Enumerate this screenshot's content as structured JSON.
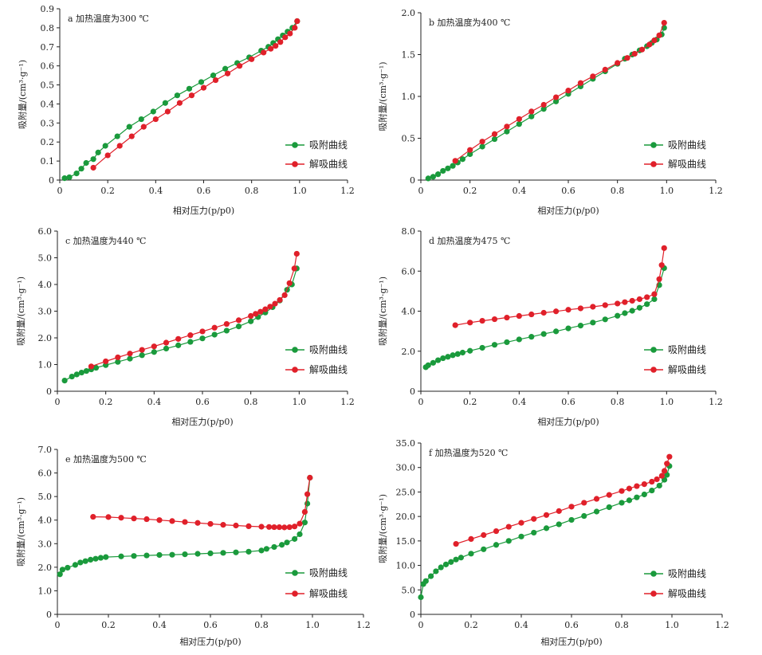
{
  "chart_data": [
    {
      "type": "line",
      "title": "a 加热温度为300 ℃",
      "xlabel": "相对压力(p/p0)",
      "ylabel": "吸附量/(cm³·g⁻¹)",
      "xlim": [
        0,
        1.2
      ],
      "ylim": [
        0,
        0.9
      ],
      "x_ticks": [
        "0",
        "0.2",
        "0.4",
        "0.6",
        "0.8",
        "1.0",
        "1.2"
      ],
      "y_ticks": [
        "0",
        "0.1",
        "0.2",
        "0.3",
        "0.4",
        "0.5",
        "0.6",
        "0.7",
        "0.8",
        "0.9"
      ],
      "legend_position": "right",
      "series": [
        {
          "name": "吸附曲线",
          "color": "#1a9a3c",
          "x": [
            0.02,
            0.04,
            0.07,
            0.09,
            0.11,
            0.14,
            0.16,
            0.19,
            0.24,
            0.29,
            0.34,
            0.39,
            0.44,
            0.49,
            0.54,
            0.59,
            0.64,
            0.69,
            0.74,
            0.79,
            0.84,
            0.87,
            0.89,
            0.91,
            0.93,
            0.95,
            0.97,
            0.99
          ],
          "y": [
            0.01,
            0.015,
            0.035,
            0.06,
            0.09,
            0.11,
            0.145,
            0.18,
            0.23,
            0.28,
            0.32,
            0.36,
            0.405,
            0.445,
            0.48,
            0.515,
            0.55,
            0.585,
            0.615,
            0.645,
            0.68,
            0.7,
            0.72,
            0.74,
            0.76,
            0.78,
            0.8,
            0.835
          ]
        },
        {
          "name": "解吸曲线",
          "color": "#e0202a",
          "x": [
            0.14,
            0.2,
            0.25,
            0.3,
            0.35,
            0.4,
            0.45,
            0.5,
            0.55,
            0.6,
            0.65,
            0.7,
            0.75,
            0.8,
            0.85,
            0.88,
            0.9,
            0.92,
            0.94,
            0.96,
            0.98,
            0.99
          ],
          "y": [
            0.065,
            0.13,
            0.18,
            0.23,
            0.28,
            0.32,
            0.36,
            0.405,
            0.445,
            0.485,
            0.525,
            0.56,
            0.6,
            0.635,
            0.67,
            0.69,
            0.705,
            0.725,
            0.75,
            0.77,
            0.8,
            0.835
          ]
        }
      ]
    },
    {
      "type": "line",
      "title": "b 加热温度为400 ℃",
      "xlabel": "相对压力(p/p0)",
      "ylabel": "吸附量/(cm³·g⁻¹)",
      "xlim": [
        0,
        1.2
      ],
      "ylim": [
        0,
        2.0
      ],
      "x_ticks": [
        "0",
        "0.2",
        "0.4",
        "0.6",
        "0.8",
        "1.0",
        "1.2"
      ],
      "y_ticks": [
        "0",
        "0.5",
        "1.0",
        "1.5",
        "2.0"
      ],
      "legend_position": "right",
      "series": [
        {
          "name": "吸附曲线",
          "color": "#1a9a3c",
          "x": [
            0.03,
            0.05,
            0.07,
            0.09,
            0.11,
            0.13,
            0.15,
            0.17,
            0.2,
            0.25,
            0.3,
            0.35,
            0.4,
            0.45,
            0.5,
            0.55,
            0.6,
            0.65,
            0.7,
            0.75,
            0.8,
            0.83,
            0.86,
            0.89,
            0.92,
            0.94,
            0.96,
            0.98,
            0.99
          ],
          "y": [
            0.02,
            0.04,
            0.07,
            0.11,
            0.14,
            0.17,
            0.21,
            0.25,
            0.31,
            0.4,
            0.49,
            0.58,
            0.67,
            0.76,
            0.85,
            0.94,
            1.03,
            1.12,
            1.21,
            1.3,
            1.39,
            1.45,
            1.5,
            1.55,
            1.6,
            1.64,
            1.68,
            1.74,
            1.82
          ]
        },
        {
          "name": "解吸曲线",
          "color": "#e0202a",
          "x": [
            0.14,
            0.2,
            0.25,
            0.3,
            0.35,
            0.4,
            0.45,
            0.5,
            0.55,
            0.6,
            0.65,
            0.7,
            0.75,
            0.8,
            0.84,
            0.87,
            0.9,
            0.93,
            0.95,
            0.97,
            0.99
          ],
          "y": [
            0.23,
            0.36,
            0.46,
            0.55,
            0.64,
            0.73,
            0.82,
            0.9,
            0.99,
            1.07,
            1.16,
            1.24,
            1.32,
            1.4,
            1.46,
            1.51,
            1.56,
            1.62,
            1.67,
            1.73,
            1.88
          ]
        }
      ]
    },
    {
      "type": "line",
      "title": "c 加热温度为440 ℃",
      "xlabel": "相对压力(p/p0)",
      "ylabel": "吸附量/(cm³·g⁻¹)",
      "xlim": [
        0,
        1.2
      ],
      "ylim": [
        0,
        6.0
      ],
      "x_ticks": [
        "0",
        "0.2",
        "0.4",
        "0.6",
        "0.8",
        "1.0",
        "1.2"
      ],
      "y_ticks": [
        "0",
        "1.0",
        "2.0",
        "3.0",
        "4.0",
        "5.0",
        "6.0"
      ],
      "legend_position": "right",
      "series": [
        {
          "name": "吸附曲线",
          "color": "#1a9a3c",
          "x": [
            0.03,
            0.06,
            0.08,
            0.1,
            0.12,
            0.14,
            0.16,
            0.2,
            0.25,
            0.3,
            0.35,
            0.4,
            0.45,
            0.5,
            0.55,
            0.6,
            0.65,
            0.7,
            0.75,
            0.8,
            0.83,
            0.86,
            0.89,
            0.92,
            0.95,
            0.97,
            0.99
          ],
          "y": [
            0.4,
            0.55,
            0.63,
            0.7,
            0.76,
            0.82,
            0.88,
            0.98,
            1.1,
            1.22,
            1.35,
            1.47,
            1.6,
            1.72,
            1.85,
            1.98,
            2.12,
            2.27,
            2.43,
            2.62,
            2.78,
            2.95,
            3.15,
            3.4,
            3.8,
            4.0,
            4.6
          ]
        },
        {
          "name": "解吸曲线",
          "color": "#e0202a",
          "x": [
            0.14,
            0.2,
            0.25,
            0.3,
            0.35,
            0.4,
            0.45,
            0.5,
            0.55,
            0.6,
            0.65,
            0.7,
            0.75,
            0.8,
            0.82,
            0.84,
            0.86,
            0.88,
            0.9,
            0.92,
            0.94,
            0.96,
            0.98,
            0.99
          ],
          "y": [
            0.93,
            1.12,
            1.27,
            1.41,
            1.55,
            1.68,
            1.82,
            1.96,
            2.1,
            2.24,
            2.38,
            2.52,
            2.66,
            2.82,
            2.9,
            2.98,
            3.07,
            3.17,
            3.28,
            3.42,
            3.6,
            4.05,
            4.6,
            5.15
          ]
        }
      ]
    },
    {
      "type": "line",
      "title": "d 加热温度为475 ℃",
      "xlabel": "相对压力(p/p0)",
      "ylabel": "吸附量/(cm³·g⁻¹)",
      "xlim": [
        0,
        1.2
      ],
      "ylim": [
        0,
        8.0
      ],
      "x_ticks": [
        "0",
        "0.2",
        "0.4",
        "0.6",
        "0.8",
        "1.0",
        "1.2"
      ],
      "y_ticks": [
        "0",
        "2.0",
        "4.0",
        "6.0",
        "8.0"
      ],
      "legend_position": "right",
      "series": [
        {
          "name": "吸附曲线",
          "color": "#1a9a3c",
          "x": [
            0.02,
            0.03,
            0.05,
            0.07,
            0.09,
            0.11,
            0.13,
            0.15,
            0.17,
            0.2,
            0.25,
            0.3,
            0.35,
            0.4,
            0.45,
            0.5,
            0.55,
            0.6,
            0.65,
            0.7,
            0.75,
            0.8,
            0.83,
            0.86,
            0.89,
            0.92,
            0.95,
            0.97,
            0.99
          ],
          "y": [
            1.2,
            1.3,
            1.42,
            1.55,
            1.65,
            1.72,
            1.8,
            1.86,
            1.93,
            2.02,
            2.17,
            2.32,
            2.45,
            2.59,
            2.72,
            2.86,
            2.99,
            3.14,
            3.28,
            3.43,
            3.59,
            3.77,
            3.9,
            4.02,
            4.17,
            4.35,
            4.6,
            5.3,
            6.15
          ]
        },
        {
          "name": "解吸曲线",
          "color": "#e0202a",
          "x": [
            0.14,
            0.2,
            0.25,
            0.3,
            0.35,
            0.4,
            0.45,
            0.5,
            0.55,
            0.6,
            0.65,
            0.7,
            0.75,
            0.8,
            0.83,
            0.86,
            0.89,
            0.92,
            0.95,
            0.97,
            0.98,
            0.99
          ],
          "y": [
            3.3,
            3.43,
            3.52,
            3.6,
            3.68,
            3.76,
            3.84,
            3.92,
            3.99,
            4.07,
            4.14,
            4.22,
            4.3,
            4.38,
            4.45,
            4.52,
            4.6,
            4.7,
            4.85,
            5.6,
            6.3,
            7.15
          ]
        }
      ]
    },
    {
      "type": "line",
      "title": "e 加热温度为500 ℃",
      "xlabel": "相对压力(p/p0)",
      "ylabel": "吸附量/(cm³·g⁻¹)",
      "xlim": [
        0,
        1.2
      ],
      "ylim": [
        0,
        7.0
      ],
      "x_ticks": [
        "0",
        "0.2",
        "0.4",
        "0.6",
        "0.8",
        "1.0",
        "1.2"
      ],
      "y_ticks": [
        "0",
        "1.0",
        "2.0",
        "3.0",
        "4.0",
        "5.0",
        "6.0",
        "7.0"
      ],
      "legend_position": "right",
      "series": [
        {
          "name": "吸附曲线",
          "color": "#1a9a3c",
          "x": [
            0.01,
            0.02,
            0.04,
            0.07,
            0.09,
            0.11,
            0.13,
            0.15,
            0.17,
            0.19,
            0.25,
            0.3,
            0.35,
            0.4,
            0.45,
            0.5,
            0.55,
            0.6,
            0.65,
            0.7,
            0.75,
            0.8,
            0.82,
            0.85,
            0.88,
            0.9,
            0.93,
            0.95,
            0.97,
            0.98,
            0.99
          ],
          "y": [
            1.7,
            1.9,
            1.98,
            2.1,
            2.2,
            2.26,
            2.32,
            2.36,
            2.4,
            2.43,
            2.46,
            2.48,
            2.5,
            2.52,
            2.53,
            2.55,
            2.57,
            2.59,
            2.61,
            2.63,
            2.66,
            2.71,
            2.78,
            2.86,
            2.95,
            3.05,
            3.2,
            3.4,
            3.9,
            4.7,
            5.8
          ]
        },
        {
          "name": "解吸曲线",
          "color": "#e0202a",
          "x": [
            0.14,
            0.2,
            0.25,
            0.3,
            0.35,
            0.4,
            0.45,
            0.5,
            0.55,
            0.6,
            0.65,
            0.7,
            0.75,
            0.8,
            0.83,
            0.85,
            0.87,
            0.89,
            0.91,
            0.93,
            0.95,
            0.97,
            0.98,
            0.99
          ],
          "y": [
            4.14,
            4.13,
            4.1,
            4.07,
            4.04,
            4.0,
            3.96,
            3.92,
            3.88,
            3.84,
            3.8,
            3.77,
            3.74,
            3.72,
            3.71,
            3.7,
            3.7,
            3.69,
            3.7,
            3.73,
            3.85,
            4.35,
            5.1,
            5.8
          ]
        }
      ]
    },
    {
      "type": "line",
      "title": "f 加热温度为520 ℃",
      "xlabel": "相对压力(p/p0)",
      "ylabel": "吸附量/(cm³·g⁻¹)",
      "xlim": [
        0,
        1.2
      ],
      "ylim": [
        0,
        35.0
      ],
      "x_ticks": [
        "0",
        "0.2",
        "0.4",
        "0.6",
        "0.8",
        "1.0",
        "1.2"
      ],
      "y_ticks": [
        "0",
        "5.0",
        "10.0",
        "15.0",
        "20.0",
        "25.0",
        "30.0",
        "35.0"
      ],
      "legend_position": "right",
      "series": [
        {
          "name": "吸附曲线",
          "color": "#1a9a3c",
          "x": [
            0.0,
            0.01,
            0.02,
            0.04,
            0.06,
            0.08,
            0.1,
            0.12,
            0.14,
            0.16,
            0.2,
            0.25,
            0.3,
            0.35,
            0.4,
            0.45,
            0.5,
            0.55,
            0.6,
            0.65,
            0.7,
            0.75,
            0.8,
            0.83,
            0.86,
            0.89,
            0.92,
            0.95,
            0.97,
            0.98,
            0.99
          ],
          "y": [
            3.5,
            6.2,
            6.8,
            7.8,
            8.8,
            9.6,
            10.2,
            10.7,
            11.2,
            11.6,
            12.4,
            13.3,
            14.2,
            15.0,
            15.9,
            16.7,
            17.6,
            18.4,
            19.3,
            20.1,
            21.0,
            21.9,
            22.8,
            23.3,
            23.9,
            24.5,
            25.3,
            26.3,
            27.5,
            28.5,
            30.3
          ]
        },
        {
          "name": "解吸曲线",
          "color": "#e0202a",
          "x": [
            0.14,
            0.2,
            0.25,
            0.3,
            0.35,
            0.4,
            0.45,
            0.5,
            0.55,
            0.6,
            0.65,
            0.7,
            0.75,
            0.8,
            0.83,
            0.86,
            0.89,
            0.92,
            0.94,
            0.96,
            0.97,
            0.98,
            0.99
          ],
          "y": [
            14.4,
            15.4,
            16.2,
            17.0,
            17.9,
            18.7,
            19.5,
            20.3,
            21.1,
            22.0,
            22.8,
            23.6,
            24.4,
            25.2,
            25.7,
            26.2,
            26.6,
            27.1,
            27.6,
            28.3,
            29.3,
            30.8,
            32.2
          ]
        }
      ]
    }
  ]
}
